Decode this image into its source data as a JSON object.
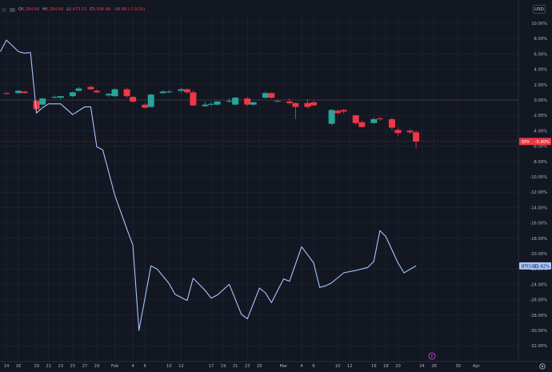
{
  "legend": {
    "o_label": "O",
    "o_value": "6,394.60",
    "h_label": "H",
    "h_value": "6,394.60",
    "l_label": "L",
    "l_value": "6,473.52",
    "c_label": "C",
    "c_value": "6,506.48",
    "change": "-99.99 (-1.51%)"
  },
  "currency_button": "USD",
  "colors": {
    "background": "#131722",
    "up": "#26a69a",
    "down": "#f23645",
    "line": "#a9c4ff",
    "grid": "#232733",
    "axis_text": "#b2b5be"
  },
  "event_marker": "P",
  "chart_data": {
    "type": "candlestick+line",
    "ylim": [
      -33.5,
      10.5
    ],
    "y_ticks": [
      10,
      8,
      6,
      4,
      2,
      0,
      -2,
      -4,
      -6,
      -8,
      -10,
      -12,
      -14,
      -16,
      -18,
      -20,
      -22,
      -24,
      -26,
      -28,
      -30,
      -32
    ],
    "y_tick_labels": [
      "10.00%",
      "8.00%",
      "6.00%",
      "4.00%",
      "2.00%",
      "0.00%",
      "-2.00%",
      "-4.00%",
      "-6.00%",
      "-8.00%",
      "-10.00%",
      "-12.00%",
      "-14.00%",
      "-16.00%",
      "-18.00%",
      "-20.00%",
      "-22.00%",
      "-24.00%",
      "-26.00%",
      "-28.00%",
      "-30.00%",
      "-32.00%"
    ],
    "x_labels": [
      "14",
      "16",
      "19",
      "21",
      "23",
      "25",
      "27",
      "29",
      "Feb",
      "4",
      "6",
      "10",
      "12",
      "17",
      "19",
      "21",
      "23",
      "25",
      "Mar",
      "4",
      "6",
      "10",
      "12",
      "16",
      "18",
      "20",
      "24",
      "26",
      "30",
      "Apr"
    ],
    "x_label_day_index": [
      0,
      2,
      5,
      7,
      9,
      11,
      13,
      15,
      18,
      21,
      23,
      27,
      29,
      34,
      36,
      38,
      40,
      42,
      46,
      49,
      51,
      55,
      57,
      61,
      63,
      65,
      69,
      71,
      75,
      78
    ],
    "x_range_days": [
      -1,
      80
    ],
    "series": [
      {
        "name": "SPX",
        "type": "candlestick",
        "last_label": "-5.40%",
        "last_value": -5.4,
        "candles": [
          {
            "d": 0,
            "o": 0.9,
            "h": 1.0,
            "l": 0.7,
            "c": 0.8
          },
          {
            "d": 2,
            "o": 0.9,
            "h": 1.3,
            "l": 0.8,
            "c": 1.2
          },
          {
            "d": 3,
            "o": 1.1,
            "h": 1.2,
            "l": 0.9,
            "c": 0.9
          },
          {
            "d": 5,
            "o": -0.1,
            "h": 0.0,
            "l": -1.5,
            "c": -1.2
          },
          {
            "d": 6,
            "o": -0.6,
            "h": 0.3,
            "l": -0.7,
            "c": 0.2
          },
          {
            "d": 8,
            "o": 0.3,
            "h": 0.6,
            "l": 0.2,
            "c": 0.4
          },
          {
            "d": 9,
            "o": 0.3,
            "h": 0.5,
            "l": 0.1,
            "c": 0.5
          },
          {
            "d": 11,
            "o": 0.5,
            "h": 1.1,
            "l": 0.4,
            "c": 1.0
          },
          {
            "d": 12,
            "o": 1.2,
            "h": 1.7,
            "l": 1.1,
            "c": 1.5
          },
          {
            "d": 14,
            "o": 1.7,
            "h": 1.9,
            "l": 1.3,
            "c": 1.4
          },
          {
            "d": 15,
            "o": 1.2,
            "h": 1.4,
            "l": 0.9,
            "c": 1.0
          },
          {
            "d": 17,
            "o": 0.6,
            "h": 0.9,
            "l": 0.4,
            "c": 0.8
          },
          {
            "d": 18,
            "o": 0.5,
            "h": 1.5,
            "l": 0.4,
            "c": 1.4
          },
          {
            "d": 20,
            "o": 1.4,
            "h": 1.6,
            "l": 0.3,
            "c": 0.5
          },
          {
            "d": 21,
            "o": 0.4,
            "h": 0.5,
            "l": -0.4,
            "c": -0.2
          },
          {
            "d": 23,
            "o": -0.6,
            "h": -0.4,
            "l": -1.1,
            "c": -1.0
          },
          {
            "d": 24,
            "o": -0.9,
            "h": 0.8,
            "l": -1.0,
            "c": 0.7
          },
          {
            "d": 26,
            "o": 0.9,
            "h": 1.3,
            "l": 0.8,
            "c": 1.1
          },
          {
            "d": 27,
            "o": 1.0,
            "h": 1.3,
            "l": 0.9,
            "c": 1.1
          },
          {
            "d": 29,
            "o": 1.2,
            "h": 1.6,
            "l": 1.0,
            "c": 1.4
          },
          {
            "d": 30,
            "o": 1.4,
            "h": 1.5,
            "l": 0.8,
            "c": 1.0
          },
          {
            "d": 31,
            "o": 1.0,
            "h": 1.2,
            "l": -0.8,
            "c": -0.7
          },
          {
            "d": 33,
            "o": -0.8,
            "h": -0.2,
            "l": -0.9,
            "c": -0.6
          },
          {
            "d": 34,
            "o": -0.6,
            "h": -0.3,
            "l": -0.8,
            "c": -0.5
          },
          {
            "d": 35,
            "o": -0.6,
            "h": -0.1,
            "l": -0.7,
            "c": -0.2
          },
          {
            "d": 37,
            "o": -0.2,
            "h": 0.2,
            "l": -0.4,
            "c": -0.1
          },
          {
            "d": 38,
            "o": -0.6,
            "h": 0.4,
            "l": -0.7,
            "c": 0.3
          },
          {
            "d": 40,
            "o": 0.2,
            "h": 0.4,
            "l": -0.8,
            "c": -0.6
          },
          {
            "d": 41,
            "o": -0.6,
            "h": -0.2,
            "l": -0.8,
            "c": -0.3
          },
          {
            "d": 43,
            "o": 0.3,
            "h": 1.1,
            "l": 0.2,
            "c": 0.9
          },
          {
            "d": 44,
            "o": 0.9,
            "h": 1.0,
            "l": 0.2,
            "c": 0.3
          },
          {
            "d": 45,
            "o": -0.1,
            "h": 0.0,
            "l": -0.3,
            "c": -0.2
          },
          {
            "d": 47,
            "o": -0.2,
            "h": 0.2,
            "l": -0.6,
            "c": -0.4
          },
          {
            "d": 48,
            "o": -0.4,
            "h": -0.3,
            "l": -2.5,
            "c": -0.9
          },
          {
            "d": 50,
            "o": -0.4,
            "h": 0.1,
            "l": -1.1,
            "c": -0.9
          },
          {
            "d": 51,
            "o": -0.3,
            "h": -0.1,
            "l": -0.8,
            "c": -0.7
          },
          {
            "d": 54,
            "o": -3.1,
            "h": -1.2,
            "l": -3.3,
            "c": -1.3
          },
          {
            "d": 55,
            "o": -1.4,
            "h": -1.2,
            "l": -1.9,
            "c": -1.7
          },
          {
            "d": 56,
            "o": -1.3,
            "h": -1.2,
            "l": -1.8,
            "c": -1.5
          },
          {
            "d": 58,
            "o": -2.0,
            "h": -1.9,
            "l": -3.2,
            "c": -3.0
          },
          {
            "d": 59,
            "o": -2.9,
            "h": -2.7,
            "l": -3.6,
            "c": -3.5
          },
          {
            "d": 61,
            "o": -3.0,
            "h": -2.3,
            "l": -3.1,
            "c": -2.5
          },
          {
            "d": 62,
            "o": -2.4,
            "h": -2.2,
            "l": -2.7,
            "c": -2.5
          },
          {
            "d": 64,
            "o": -2.5,
            "h": -2.3,
            "l": -3.9,
            "c": -3.6
          },
          {
            "d": 65,
            "o": -3.9,
            "h": -3.6,
            "l": -4.7,
            "c": -4.3
          },
          {
            "d": 67,
            "o": -4.0,
            "h": -3.8,
            "l": -4.4,
            "c": -4.2
          },
          {
            "d": 68,
            "o": -4.2,
            "h": -4.0,
            "l": -6.3,
            "c": -5.4
          }
        ]
      },
      {
        "name": "BTCUSD",
        "type": "line",
        "last_label": "-21.62%",
        "last_value": -21.6,
        "points": [
          {
            "d": -1,
            "v": 6.3
          },
          {
            "d": 0,
            "v": 7.8
          },
          {
            "d": 2,
            "v": 6.3
          },
          {
            "d": 3,
            "v": 6.1
          },
          {
            "d": 4,
            "v": 6.2
          },
          {
            "d": 5,
            "v": -1.7
          },
          {
            "d": 6,
            "v": -1.0
          },
          {
            "d": 7,
            "v": -0.5
          },
          {
            "d": 9,
            "v": -0.5
          },
          {
            "d": 11,
            "v": -1.9
          },
          {
            "d": 13,
            "v": -0.9
          },
          {
            "d": 14,
            "v": -0.9
          },
          {
            "d": 15,
            "v": -6.1
          },
          {
            "d": 16,
            "v": -6.5
          },
          {
            "d": 18,
            "v": -12.4
          },
          {
            "d": 20,
            "v": -16.8
          },
          {
            "d": 21,
            "v": -18.9
          },
          {
            "d": 22,
            "v": -30.0
          },
          {
            "d": 24,
            "v": -21.6
          },
          {
            "d": 25,
            "v": -22.0
          },
          {
            "d": 27,
            "v": -23.9
          },
          {
            "d": 28,
            "v": -25.3
          },
          {
            "d": 30,
            "v": -26.1
          },
          {
            "d": 31,
            "v": -23.2
          },
          {
            "d": 33,
            "v": -24.8
          },
          {
            "d": 34,
            "v": -25.8
          },
          {
            "d": 35,
            "v": -25.4
          },
          {
            "d": 37,
            "v": -24.0
          },
          {
            "d": 39,
            "v": -27.9
          },
          {
            "d": 40,
            "v": -28.5
          },
          {
            "d": 42,
            "v": -24.5
          },
          {
            "d": 43,
            "v": -25.1
          },
          {
            "d": 44,
            "v": -26.4
          },
          {
            "d": 46,
            "v": -23.3
          },
          {
            "d": 47,
            "v": -23.6
          },
          {
            "d": 49,
            "v": -19.1
          },
          {
            "d": 51,
            "v": -21.2
          },
          {
            "d": 52,
            "v": -24.4
          },
          {
            "d": 53,
            "v": -24.2
          },
          {
            "d": 54,
            "v": -23.8
          },
          {
            "d": 56,
            "v": -22.5
          },
          {
            "d": 58,
            "v": -22.2
          },
          {
            "d": 60,
            "v": -21.8
          },
          {
            "d": 61,
            "v": -21.0
          },
          {
            "d": 62,
            "v": -17.0
          },
          {
            "d": 63,
            "v": -17.8
          },
          {
            "d": 65,
            "v": -21.2
          },
          {
            "d": 66,
            "v": -22.5
          },
          {
            "d": 68,
            "v": -21.6
          }
        ]
      }
    ],
    "grid": true,
    "legend": "none"
  }
}
